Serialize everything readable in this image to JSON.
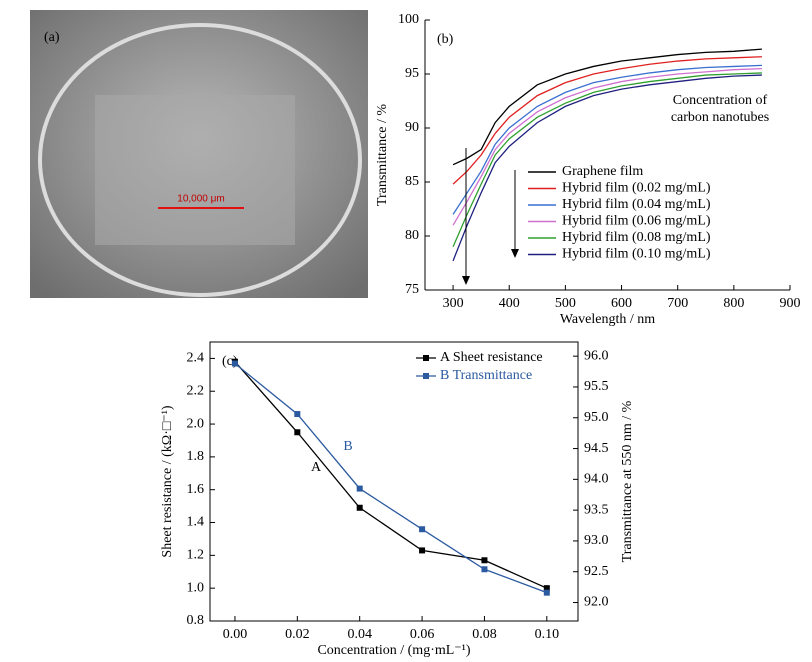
{
  "photo": {
    "label": "(a)",
    "scale_bar": "10,000 μm"
  },
  "chart_data": [
    {
      "type": "line",
      "title": "(b)",
      "x_label": "Wavelength / nm",
      "y_label": "Transmittance / %",
      "annotation": [
        "Concentration of",
        "carbon nanotubes"
      ],
      "x": [
        300,
        325,
        350,
        375,
        400,
        450,
        500,
        550,
        600,
        650,
        700,
        750,
        800,
        850
      ],
      "series": [
        {
          "name": "Graphene film",
          "color": "#000000",
          "values": [
            86.6,
            87.2,
            88,
            90.5,
            92,
            94,
            95,
            95.7,
            96.2,
            96.5,
            96.8,
            97,
            97.1,
            97.3
          ]
        },
        {
          "name": "Hybrid film (0.02 mg/mL)",
          "color": "#e02020",
          "values": [
            84.8,
            86,
            87.5,
            89.5,
            91,
            93,
            94.2,
            95,
            95.5,
            95.9,
            96.2,
            96.4,
            96.5,
            96.6
          ]
        },
        {
          "name": "Hybrid film (0.04 mg/mL)",
          "color": "#3a6fd0",
          "values": [
            82,
            84,
            86,
            88.5,
            90,
            92,
            93.3,
            94.2,
            94.7,
            95.1,
            95.4,
            95.6,
            95.7,
            95.8
          ]
        },
        {
          "name": "Hybrid film (0.06 mg/mL)",
          "color": "#d070d0",
          "values": [
            81,
            83.2,
            85.5,
            88,
            89.5,
            91.5,
            92.8,
            93.7,
            94.3,
            94.7,
            95,
            95.2,
            95.4,
            95.5
          ]
        },
        {
          "name": "Hybrid film (0.08 mg/mL)",
          "color": "#30a030",
          "values": [
            79,
            82,
            84.8,
            87.5,
            89,
            91,
            92.3,
            93.3,
            93.9,
            94.3,
            94.6,
            94.9,
            95,
            95.1
          ]
        },
        {
          "name": "Hybrid film (0.10 mg/mL)",
          "color": "#202080",
          "values": [
            77.7,
            81,
            84,
            86.8,
            88.3,
            90.5,
            92,
            93,
            93.6,
            94,
            94.3,
            94.6,
            94.8,
            94.9
          ]
        }
      ],
      "xlim": [
        250,
        900
      ],
      "xticks": [
        300,
        400,
        500,
        600,
        700,
        800,
        900
      ],
      "ylim": [
        75,
        100
      ],
      "yticks": [
        75,
        80,
        85,
        90,
        95,
        100
      ]
    },
    {
      "type": "line",
      "title": "(c)",
      "x_label": "Concentration / (mg·mL⁻¹)",
      "y_label": "Sheet resistance / (kΩ·□⁻¹)",
      "y2_label": "Transmittance at 550 nm / %",
      "annotations": [
        "A",
        "B"
      ],
      "marker": "square",
      "x": [
        0,
        0.02,
        0.04,
        0.06,
        0.08,
        0.1
      ],
      "series": [
        {
          "name": "A  Sheet resistance",
          "color": "#000000",
          "values": [
            2.38,
            1.95,
            1.49,
            1.23,
            1.17,
            1.0
          ]
        },
        {
          "name": "B Transmittance",
          "color": "#2c5aa0",
          "axis": "y2",
          "values": [
            95.88,
            95.06,
            93.85,
            93.19,
            92.54,
            92.16
          ]
        }
      ],
      "xlim": [
        -0.008,
        0.11
      ],
      "xticks": [
        {
          "value": 0,
          "label": "0.00"
        },
        {
          "value": 0.02,
          "label": "0.02"
        },
        {
          "value": 0.04,
          "label": "0.04"
        },
        {
          "value": 0.06,
          "label": "0.06"
        },
        {
          "value": 0.08,
          "label": "0.08"
        },
        {
          "value": 0.1,
          "label": "0.10"
        }
      ],
      "ylim": [
        0.8,
        2.5
      ],
      "yticks": [
        0.8,
        {
          "value": 1,
          "label": "1.0"
        },
        1.2,
        1.4,
        1.6,
        1.8,
        {
          "value": 2,
          "label": "2.0"
        },
        2.2,
        2.4
      ],
      "y2lim": [
        91.7,
        96.23
      ],
      "y2ticks": [
        {
          "value": 92,
          "label": "92.0"
        },
        92.5,
        {
          "value": 93,
          "label": "93.0"
        },
        93.5,
        {
          "value": 94,
          "label": "94.0"
        },
        94.5,
        {
          "value": 95,
          "label": "95.0"
        },
        95.5,
        {
          "value": 96,
          "label": "96.0"
        }
      ]
    }
  ]
}
